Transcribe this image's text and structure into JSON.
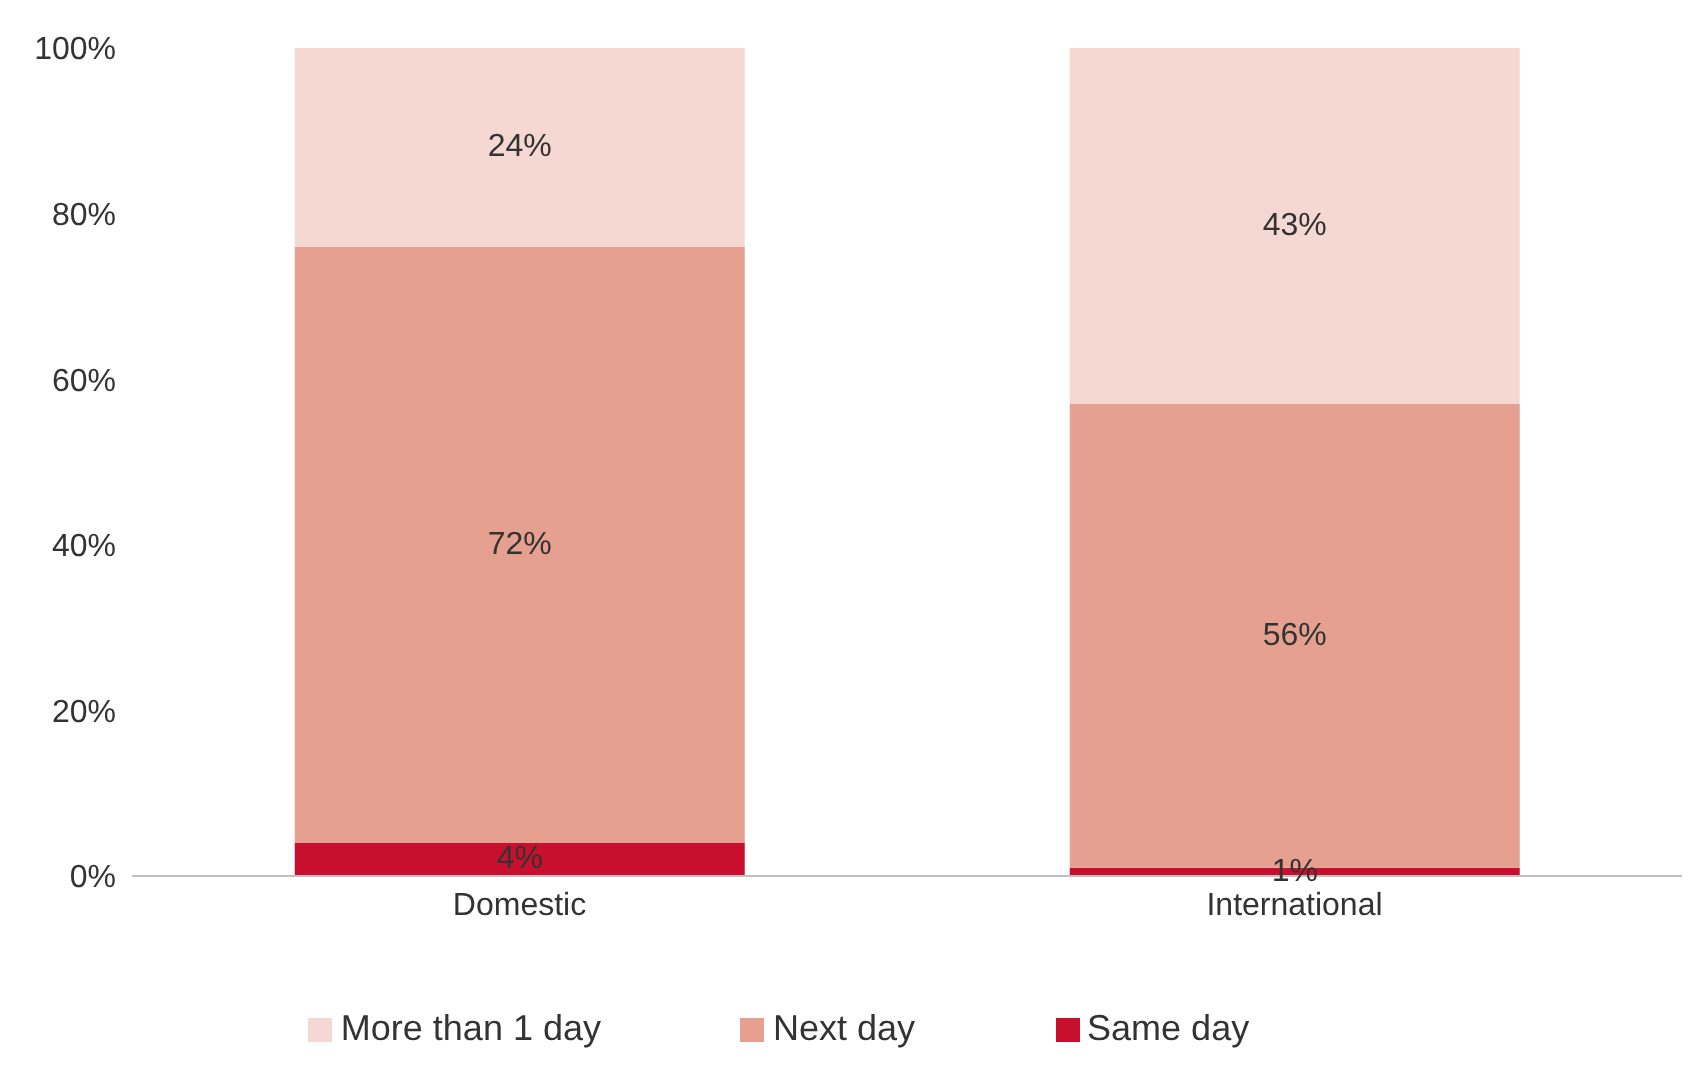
{
  "chart_data": {
    "type": "bar",
    "stacked": true,
    "categories": [
      "Domestic",
      "International"
    ],
    "series": [
      {
        "name": "Same day",
        "color": "#c8102e",
        "values": [
          4,
          1
        ],
        "value_labels": [
          "4%",
          "1%"
        ]
      },
      {
        "name": "Next day",
        "color": "#e6a090",
        "values": [
          72,
          56
        ],
        "value_labels": [
          "72%",
          "56%"
        ]
      },
      {
        "name": "More than 1 day",
        "color": "#f5d8d2",
        "values": [
          24,
          43
        ],
        "value_labels": [
          "24%",
          "43%"
        ]
      }
    ],
    "ylim": [
      0,
      100
    ],
    "yticks": [
      {
        "value": 0,
        "label": "0%"
      },
      {
        "value": 20,
        "label": "20%"
      },
      {
        "value": 40,
        "label": "40%"
      },
      {
        "value": 60,
        "label": "60%"
      },
      {
        "value": 80,
        "label": "80%"
      },
      {
        "value": 100,
        "label": "100%"
      }
    ],
    "grid": false,
    "legend": "bottom"
  }
}
